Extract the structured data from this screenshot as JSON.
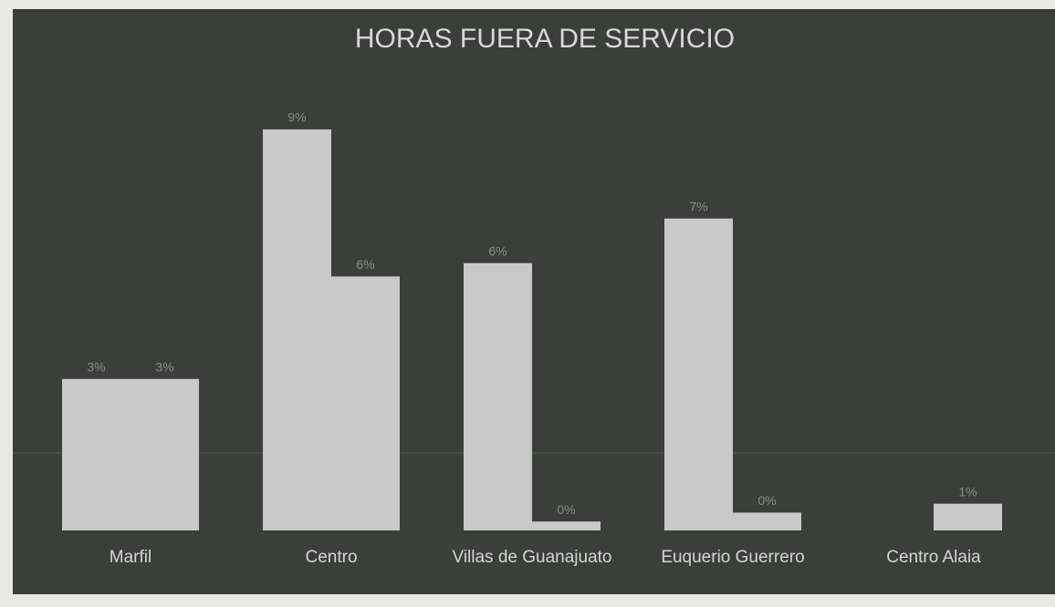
{
  "chart_data": {
    "type": "bar",
    "title": "HORAS FUERA DE SERVICIO",
    "categories": [
      "Marfil",
      "Centro",
      "Villas de Guanajuato",
      "Euquerio Guerrero",
      "Centro Alaia"
    ],
    "series": [
      {
        "color": "#c9c9c9",
        "values": [
          3.4,
          9,
          6,
          7,
          null
        ],
        "value_labels": [
          "3%",
          "9%",
          "6%",
          "7%",
          null
        ]
      },
      {
        "color": "#c9c9c9",
        "values": [
          3.4,
          5.7,
          0.2,
          0.4,
          0.6
        ],
        "value_labels": [
          "3%",
          "6%",
          "0%",
          "0%",
          "1%"
        ]
      }
    ]
  }
}
